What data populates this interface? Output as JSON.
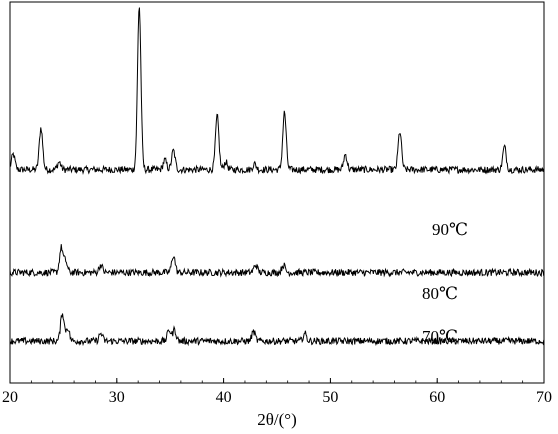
{
  "chart_data": {
    "type": "line",
    "title": "",
    "xlabel": "2θ/(°)",
    "ylabel": "",
    "xlim": [
      20,
      70
    ],
    "x_ticks": [
      "20",
      "30",
      "40",
      "50",
      "60",
      "70"
    ],
    "grid": false,
    "legend": "none",
    "line_color": "#000000",
    "series": [
      {
        "name": "90℃",
        "baseline": 0.56,
        "peaks": [
          [
            20.3,
            0.04
          ],
          [
            22.9,
            0.11
          ],
          [
            24.6,
            0.02
          ],
          [
            32.1,
            0.43
          ],
          [
            34.5,
            0.025
          ],
          [
            35.3,
            0.05
          ],
          [
            39.4,
            0.14
          ],
          [
            40.2,
            0.02
          ],
          [
            42.9,
            0.015
          ],
          [
            45.7,
            0.15
          ],
          [
            51.4,
            0.04
          ],
          [
            56.5,
            0.1
          ],
          [
            66.3,
            0.06
          ]
        ]
      },
      {
        "name": "80℃",
        "baseline": 0.29,
        "peaks": [
          [
            24.8,
            0.065
          ],
          [
            25.2,
            0.03
          ],
          [
            28.5,
            0.02
          ],
          [
            35.3,
            0.045
          ],
          [
            43.0,
            0.02
          ],
          [
            45.6,
            0.02
          ]
        ]
      },
      {
        "name": "70℃",
        "baseline": 0.11,
        "peaks": [
          [
            24.9,
            0.075
          ],
          [
            25.4,
            0.035
          ],
          [
            28.5,
            0.02
          ],
          [
            34.9,
            0.03
          ],
          [
            35.4,
            0.03
          ],
          [
            42.8,
            0.025
          ],
          [
            47.6,
            0.02
          ]
        ]
      }
    ]
  }
}
